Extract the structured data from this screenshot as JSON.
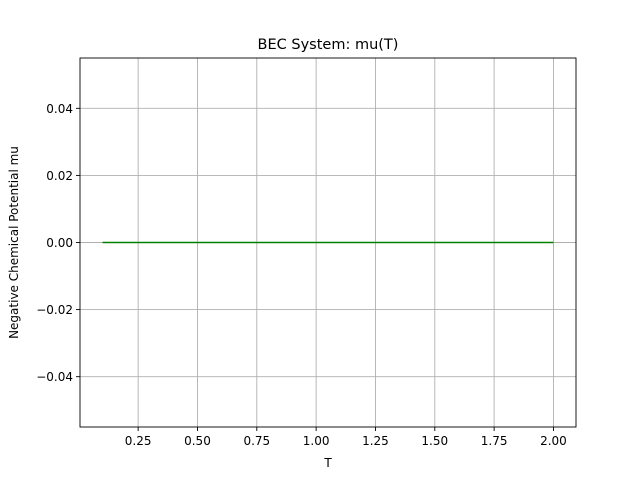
{
  "chart_data": {
    "type": "line",
    "title": "BEC System: mu(T)",
    "xlabel": "T",
    "ylabel": "Negative Chemical Potential mu",
    "xlim": [
      0.005,
      2.095
    ],
    "ylim": [
      -0.055,
      0.055
    ],
    "xticks": [
      0.25,
      0.5,
      0.75,
      1.0,
      1.25,
      1.5,
      1.75,
      2.0
    ],
    "xtick_labels": [
      "0.25",
      "0.50",
      "0.75",
      "1.00",
      "1.25",
      "1.50",
      "1.75",
      "2.00"
    ],
    "yticks": [
      -0.04,
      -0.02,
      0.0,
      0.02,
      0.04
    ],
    "ytick_labels": [
      "−0.04",
      "−0.02",
      "0.00",
      "0.02",
      "0.04"
    ],
    "grid": true,
    "series": [
      {
        "color": "#008000",
        "x": [
          0.1,
          2.0
        ],
        "y": [
          0.0,
          0.0
        ]
      }
    ]
  }
}
